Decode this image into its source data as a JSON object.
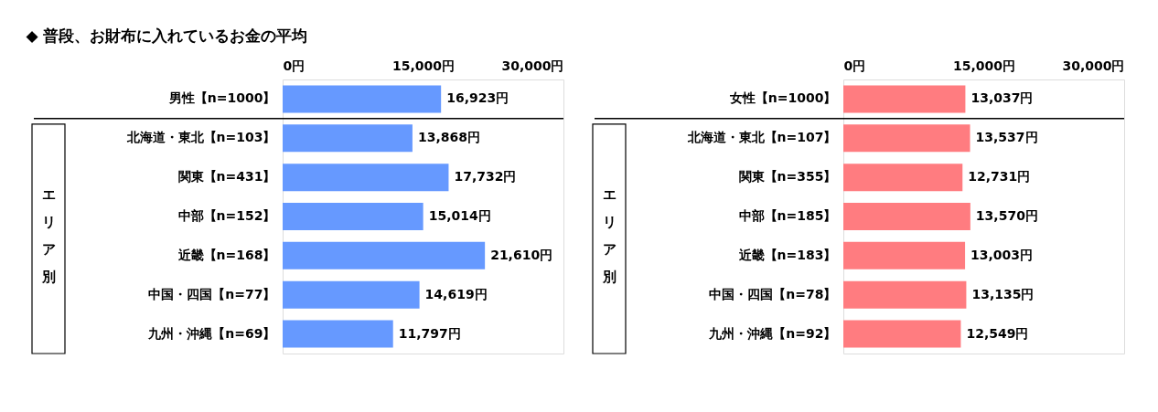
{
  "chart_data": [
    {
      "type": "bar",
      "orientation": "horizontal",
      "title": "◆ 普段、お財布に入れているお金の平均",
      "categories": [
        "男性【n=1000】",
        "北海道・東北【n=103】",
        "関東【n=431】",
        "中部【n=152】",
        "近畿【n=168】",
        "中国・四国【n=77】",
        "九州・沖縄【n=69】"
      ],
      "series": [
        {
          "color": "#6699ff",
          "values": [
            16923,
            13868,
            17732,
            15014,
            21610,
            14619,
            11797
          ],
          "value_labels": [
            "16,923円",
            "13,868円",
            "17,732円",
            "15,014円",
            "21,610円",
            "14,619円",
            "11,797円"
          ]
        }
      ],
      "xlim": [
        0,
        30000
      ],
      "xticks": [
        {
          "value": 0,
          "label": "0円"
        },
        {
          "value": 15000,
          "label": "15,000円"
        },
        {
          "value": 30000,
          "label": "30,000円"
        }
      ],
      "annotations": [
        "エリア別"
      ]
    },
    {
      "type": "bar",
      "orientation": "horizontal",
      "categories": [
        "女性【n=1000】",
        "北海道・東北【n=107】",
        "関東【n=355】",
        "中部【n=185】",
        "近畿【n=183】",
        "中国・四国【n=78】",
        "九州・沖縄【n=92】"
      ],
      "series": [
        {
          "color": "#ff7c80",
          "values": [
            13037,
            13537,
            12731,
            13570,
            13003,
            13135,
            12549
          ],
          "value_labels": [
            "13,037円",
            "13,537円",
            "12,731円",
            "13,570円",
            "13,003円",
            "13,135円",
            "12,549円"
          ]
        }
      ],
      "xlim": [
        0,
        30000
      ],
      "xticks": [
        {
          "value": 0,
          "label": "0円"
        },
        {
          "value": 15000,
          "label": "15,000円"
        },
        {
          "value": 30000,
          "label": "30,000円"
        }
      ],
      "annotations": [
        "エリア別"
      ]
    }
  ]
}
